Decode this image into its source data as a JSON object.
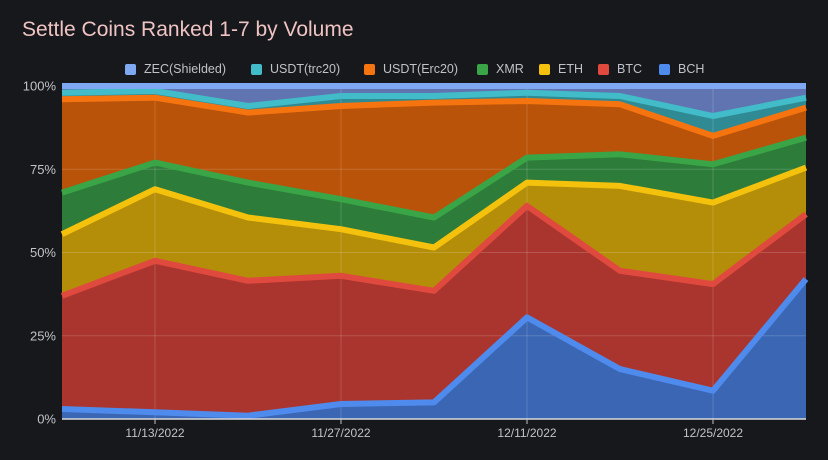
{
  "chart_data": {
    "type": "area",
    "stacked": "percent",
    "title": "Settle Coins Ranked 1-7 by Volume",
    "xlabel": "",
    "ylabel": "",
    "ylim": [
      0,
      100
    ],
    "x": [
      "11/6/2022",
      "11/13/2022",
      "11/20/2022",
      "11/27/2022",
      "12/4/2022",
      "12/11/2022",
      "12/18/2022",
      "12/25/2022",
      "1/1/2023"
    ],
    "xtick_labels": [
      "11/13/2022",
      "11/27/2022",
      "12/11/2022",
      "12/25/2022"
    ],
    "ytick_labels": [
      "0%",
      "25%",
      "50%",
      "75%",
      "100%"
    ],
    "series": [
      {
        "name": "BCH",
        "color": "#4f8bec",
        "fill": "#3b66b4",
        "values": [
          3,
          2,
          1,
          4.5,
          5,
          30.5,
          15,
          8.5,
          42
        ]
      },
      {
        "name": "BTC",
        "color": "#e04a3e",
        "fill": "#aa352e",
        "values": [
          34,
          45.5,
          40.5,
          38.5,
          33.5,
          33.5,
          29.5,
          32,
          19.5
        ]
      },
      {
        "name": "ETH",
        "color": "#f4c20d",
        "fill": "#b48e09",
        "values": [
          18.5,
          21.5,
          19,
          14,
          13,
          7,
          25.5,
          24.5,
          14
        ]
      },
      {
        "name": "XMR",
        "color": "#3aa547",
        "fill": "#2d7c3a",
        "values": [
          12.5,
          8,
          10.5,
          9,
          9,
          7.5,
          9.5,
          11.5,
          9
        ]
      },
      {
        "name": "USDT(Erc20)",
        "color": "#f6740f",
        "fill": "#b85309",
        "values": [
          28,
          19.5,
          21,
          28,
          34.5,
          17,
          15,
          8.5,
          9
        ]
      },
      {
        "name": "USDT(trc20)",
        "color": "#41bcc8",
        "fill": "#2f8a93",
        "values": [
          2,
          2,
          2,
          3,
          2,
          2.5,
          2.5,
          6,
          3
        ]
      },
      {
        "name": "ZEC(Shielded)",
        "color": "#7fa8f2",
        "fill": "#5f74b0",
        "values": [
          2,
          1.5,
          6,
          3,
          3,
          2,
          3,
          9,
          3.5
        ]
      }
    ],
    "legend": [
      "ZEC(Shielded)",
      "USDT(trc20)",
      "USDT(Erc20)",
      "XMR",
      "ETH",
      "BTC",
      "BCH"
    ],
    "legend_position": "top-center",
    "grid": true
  }
}
